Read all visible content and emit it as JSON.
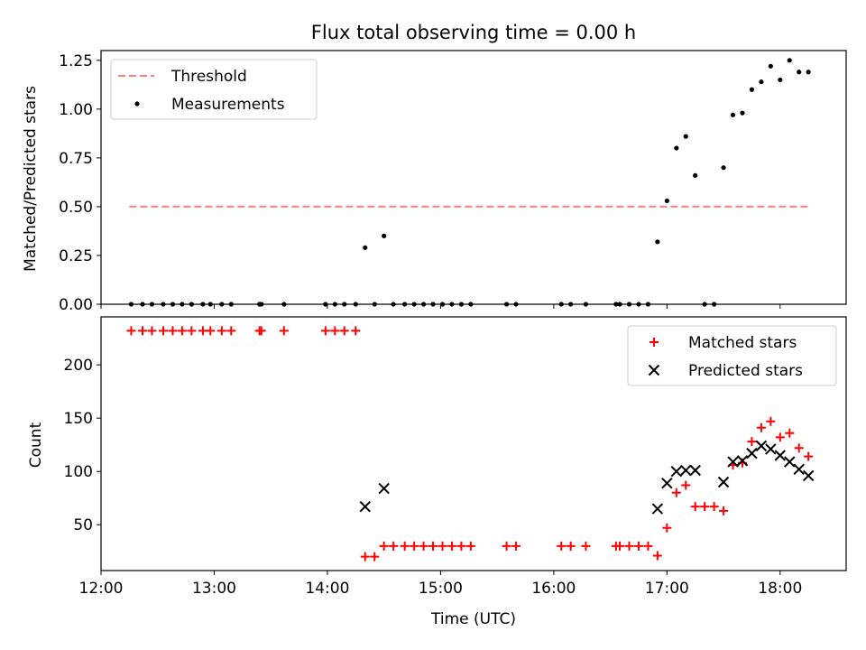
{
  "chart_data": [
    {
      "type": "scatter",
      "title": "Flux total observing time = 0.00 h",
      "xlabel": "",
      "ylabel": "Matched/Predicted stars",
      "xlim": [
        "12:00",
        "18:35"
      ],
      "ylim": [
        0,
        1.3
      ],
      "x_ticks": [
        "12:00",
        "13:00",
        "14:00",
        "15:00",
        "16:00",
        "17:00",
        "18:00"
      ],
      "y_ticks": [
        {
          "value": 0,
          "label": "0.00"
        },
        {
          "value": 0.25,
          "label": "0.25"
        },
        {
          "value": 0.5,
          "label": "0.50"
        },
        {
          "value": 0.75,
          "label": "0.75"
        },
        {
          "value": 1.0,
          "label": "1.00"
        },
        {
          "value": 1.25,
          "label": "1.25"
        }
      ],
      "legend": {
        "position": "top-left",
        "entries": [
          "Threshold",
          "Measurements"
        ]
      },
      "colors": {
        "threshold": "#ff7f7f",
        "measurements": "#000000"
      },
      "series": [
        {
          "name": "Threshold",
          "style": "dashed-line",
          "points": [
            [
              "12:15",
              0.5
            ],
            [
              "18:16",
              0.5
            ]
          ]
        },
        {
          "name": "Measurements",
          "style": "dot",
          "points": [
            [
              "12:16",
              0
            ],
            [
              "12:22",
              0
            ],
            [
              "12:27",
              0
            ],
            [
              "12:33",
              0
            ],
            [
              "12:38",
              0
            ],
            [
              "12:43",
              0
            ],
            [
              "12:48",
              0
            ],
            [
              "12:54",
              0
            ],
            [
              "12:58",
              0
            ],
            [
              "13:04",
              0
            ],
            [
              "13:09",
              0
            ],
            [
              "13:24",
              0
            ],
            [
              "13:25",
              0
            ],
            [
              "13:37",
              0
            ],
            [
              "13:59",
              0
            ],
            [
              "14:04",
              0
            ],
            [
              "14:09",
              0
            ],
            [
              "14:15",
              0
            ],
            [
              "14:20",
              0.29
            ],
            [
              "14:25",
              0
            ],
            [
              "14:30",
              0.35
            ],
            [
              "14:35",
              0
            ],
            [
              "14:41",
              0
            ],
            [
              "14:46",
              0
            ],
            [
              "14:51",
              0
            ],
            [
              "14:56",
              0
            ],
            [
              "15:01",
              0
            ],
            [
              "15:06",
              0
            ],
            [
              "15:11",
              0
            ],
            [
              "15:16",
              0
            ],
            [
              "15:35",
              0
            ],
            [
              "15:40",
              0
            ],
            [
              "16:04",
              0
            ],
            [
              "16:09",
              0
            ],
            [
              "16:17",
              0
            ],
            [
              "16:33",
              0
            ],
            [
              "16:35",
              0
            ],
            [
              "16:40",
              0
            ],
            [
              "16:45",
              0
            ],
            [
              "16:50",
              0
            ],
            [
              "16:55",
              0.32
            ],
            [
              "17:00",
              0.53
            ],
            [
              "17:05",
              0.8
            ],
            [
              "17:10",
              0.86
            ],
            [
              "17:15",
              0.66
            ],
            [
              "17:20",
              0
            ],
            [
              "17:25",
              0
            ],
            [
              "17:30",
              0.7
            ],
            [
              "17:35",
              0.97
            ],
            [
              "17:40",
              0.98
            ],
            [
              "17:45",
              1.1
            ],
            [
              "17:50",
              1.14
            ],
            [
              "17:55",
              1.22
            ],
            [
              "18:00",
              1.15
            ],
            [
              "18:05",
              1.25
            ],
            [
              "18:10",
              1.19
            ],
            [
              "18:15",
              1.19
            ]
          ]
        }
      ]
    },
    {
      "type": "scatter",
      "title": "",
      "xlabel": "Time (UTC)",
      "ylabel": "Count",
      "xlim": [
        "12:00",
        "18:35"
      ],
      "ylim": [
        7,
        245
      ],
      "x_ticks": [
        "12:00",
        "13:00",
        "14:00",
        "15:00",
        "16:00",
        "17:00",
        "18:00"
      ],
      "y_ticks": [
        {
          "value": 50,
          "label": "50"
        },
        {
          "value": 100,
          "label": "100"
        },
        {
          "value": 150,
          "label": "150"
        },
        {
          "value": 200,
          "label": "200"
        }
      ],
      "legend": {
        "position": "top-right",
        "entries": [
          "Matched stars",
          "Predicted stars"
        ]
      },
      "colors": {
        "matched": "#ff0000",
        "predicted": "#000000"
      },
      "series": [
        {
          "name": "Matched stars",
          "marker": "plus",
          "points": [
            [
              "12:16",
              232
            ],
            [
              "12:22",
              232
            ],
            [
              "12:27",
              232
            ],
            [
              "12:33",
              232
            ],
            [
              "12:38",
              232
            ],
            [
              "12:43",
              232
            ],
            [
              "12:48",
              232
            ],
            [
              "12:54",
              232
            ],
            [
              "12:58",
              232
            ],
            [
              "13:04",
              232
            ],
            [
              "13:09",
              232
            ],
            [
              "13:24",
              232
            ],
            [
              "13:25",
              232
            ],
            [
              "13:37",
              232
            ],
            [
              "13:59",
              232
            ],
            [
              "14:04",
              232
            ],
            [
              "14:09",
              232
            ],
            [
              "14:15",
              232
            ],
            [
              "14:20",
              20
            ],
            [
              "14:25",
              20
            ],
            [
              "14:30",
              30
            ],
            [
              "14:35",
              30
            ],
            [
              "14:41",
              30
            ],
            [
              "14:46",
              30
            ],
            [
              "14:51",
              30
            ],
            [
              "14:56",
              30
            ],
            [
              "15:01",
              30
            ],
            [
              "15:06",
              30
            ],
            [
              "15:11",
              30
            ],
            [
              "15:16",
              30
            ],
            [
              "15:35",
              30
            ],
            [
              "15:40",
              30
            ],
            [
              "16:04",
              30
            ],
            [
              "16:09",
              30
            ],
            [
              "16:17",
              30
            ],
            [
              "16:33",
              30
            ],
            [
              "16:35",
              30
            ],
            [
              "16:40",
              30
            ],
            [
              "16:45",
              30
            ],
            [
              "16:50",
              30
            ],
            [
              "16:55",
              21
            ],
            [
              "17:00",
              47
            ],
            [
              "17:05",
              80
            ],
            [
              "17:10",
              87
            ],
            [
              "17:15",
              67
            ],
            [
              "17:20",
              67
            ],
            [
              "17:25",
              67
            ],
            [
              "17:30",
              63
            ],
            [
              "17:35",
              106
            ],
            [
              "17:40",
              108
            ],
            [
              "17:45",
              128
            ],
            [
              "17:50",
              141
            ],
            [
              "17:55",
              147
            ],
            [
              "18:00",
              132
            ],
            [
              "18:05",
              136
            ],
            [
              "18:10",
              122
            ],
            [
              "18:15",
              114
            ]
          ]
        },
        {
          "name": "Predicted stars",
          "marker": "x",
          "points": [
            [
              "14:20",
              67
            ],
            [
              "14:30",
              84
            ],
            [
              "16:55",
              65
            ],
            [
              "17:00",
              89
            ],
            [
              "17:05",
              100
            ],
            [
              "17:10",
              101
            ],
            [
              "17:15",
              101
            ],
            [
              "17:30",
              90
            ],
            [
              "17:35",
              109
            ],
            [
              "17:40",
              110
            ],
            [
              "17:45",
              117
            ],
            [
              "17:50",
              124
            ],
            [
              "17:55",
              121
            ],
            [
              "18:00",
              115
            ],
            [
              "18:05",
              109
            ],
            [
              "18:10",
              102
            ],
            [
              "18:15",
              96
            ]
          ]
        }
      ]
    }
  ]
}
